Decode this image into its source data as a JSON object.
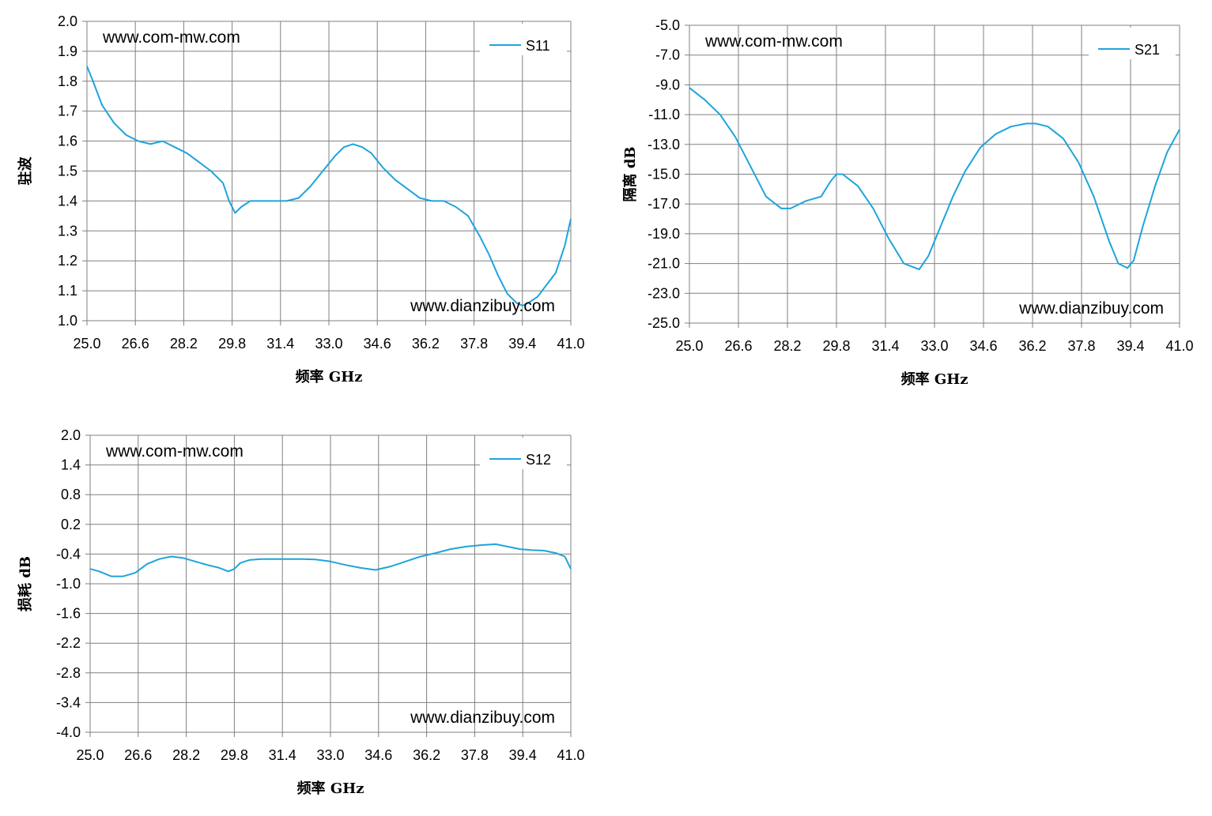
{
  "page": {
    "background": "#ffffff"
  },
  "style": {
    "series_color": "#1ea4dc",
    "grid_color": "#808080",
    "axis_color": "#808080"
  },
  "chart_data": [
    {
      "type": "line",
      "xlabel": "频率 GHz",
      "ylabel": "驻波",
      "xlim": [
        25.0,
        41.0
      ],
      "ylim": [
        1.0,
        2.0
      ],
      "x_ticks": [
        "25.0",
        "26.6",
        "28.2",
        "29.8",
        "31.4",
        "33.0",
        "34.6",
        "36.2",
        "37.8",
        "39.4",
        "41.0"
      ],
      "y_ticks": [
        "2.0",
        "1.9",
        "1.8",
        "1.7",
        "1.6",
        "1.5",
        "1.4",
        "1.3",
        "1.2",
        "1.1",
        "1.0"
      ],
      "grid": true,
      "legend": "top-right",
      "watermarks": [
        "www.com-mw.com",
        "www.dianzibuy.com"
      ],
      "series": [
        {
          "name": "S11",
          "x": [
            25.0,
            25.2,
            25.5,
            25.9,
            26.3,
            26.7,
            27.1,
            27.5,
            27.9,
            28.3,
            28.7,
            29.1,
            29.5,
            29.7,
            29.9,
            30.1,
            30.4,
            30.8,
            31.2,
            31.6,
            32.0,
            32.4,
            32.8,
            33.2,
            33.5,
            33.8,
            34.1,
            34.4,
            34.8,
            35.2,
            35.6,
            36.0,
            36.4,
            36.8,
            37.2,
            37.6,
            38.0,
            38.3,
            38.6,
            38.9,
            39.2,
            39.4,
            39.6,
            39.9,
            40.2,
            40.5,
            40.8,
            41.0
          ],
          "y": [
            1.85,
            1.8,
            1.72,
            1.66,
            1.62,
            1.6,
            1.59,
            1.6,
            1.58,
            1.56,
            1.53,
            1.5,
            1.46,
            1.4,
            1.36,
            1.38,
            1.4,
            1.4,
            1.4,
            1.4,
            1.41,
            1.45,
            1.5,
            1.55,
            1.58,
            1.59,
            1.58,
            1.56,
            1.51,
            1.47,
            1.44,
            1.41,
            1.4,
            1.4,
            1.38,
            1.35,
            1.28,
            1.22,
            1.15,
            1.09,
            1.06,
            1.05,
            1.06,
            1.08,
            1.12,
            1.16,
            1.25,
            1.34
          ]
        }
      ]
    },
    {
      "type": "line",
      "xlabel": "频率 GHz",
      "ylabel": "隔离 dB",
      "xlim": [
        25.0,
        41.0
      ],
      "ylim": [
        -25.0,
        -5.0
      ],
      "x_ticks": [
        "25.0",
        "26.6",
        "28.2",
        "29.8",
        "31.4",
        "33.0",
        "34.6",
        "36.2",
        "37.8",
        "39.4",
        "41.0"
      ],
      "y_ticks": [
        "-5.0",
        "-7.0",
        "-9.0",
        "-11.0",
        "-13.0",
        "-15.0",
        "-17.0",
        "-19.0",
        "-21.0",
        "-23.0",
        "-25.0"
      ],
      "grid": true,
      "legend": "top-right",
      "watermarks": [
        "www.com-mw.com",
        "www.dianzibuy.com"
      ],
      "series": [
        {
          "name": "S21",
          "x": [
            25.0,
            25.5,
            26.0,
            26.5,
            27.0,
            27.5,
            28.0,
            28.3,
            28.8,
            29.3,
            29.6,
            29.8,
            30.0,
            30.5,
            31.0,
            31.5,
            32.0,
            32.5,
            32.8,
            33.2,
            33.6,
            34.0,
            34.5,
            35.0,
            35.5,
            36.0,
            36.3,
            36.7,
            37.2,
            37.7,
            38.2,
            38.7,
            39.0,
            39.3,
            39.5,
            39.8,
            40.2,
            40.6,
            41.0
          ],
          "y": [
            -9.2,
            -10.0,
            -11.0,
            -12.5,
            -14.5,
            -16.5,
            -17.3,
            -17.3,
            -16.8,
            -16.5,
            -15.5,
            -15.0,
            -15.0,
            -15.8,
            -17.3,
            -19.3,
            -21.0,
            -21.4,
            -20.5,
            -18.5,
            -16.5,
            -14.8,
            -13.2,
            -12.3,
            -11.8,
            -11.6,
            -11.6,
            -11.8,
            -12.6,
            -14.2,
            -16.5,
            -19.5,
            -21.0,
            -21.3,
            -20.8,
            -18.5,
            -15.8,
            -13.5,
            -12.0
          ]
        }
      ]
    },
    {
      "type": "line",
      "xlabel": "频率 GHz",
      "ylabel": "损耗 dB",
      "xlim": [
        25.0,
        41.0
      ],
      "ylim": [
        -4.0,
        2.0
      ],
      "x_ticks": [
        "25.0",
        "26.6",
        "28.2",
        "29.8",
        "31.4",
        "33.0",
        "34.6",
        "36.2",
        "37.8",
        "39.4",
        "41.0"
      ],
      "y_ticks": [
        "2.0",
        "1.4",
        "0.8",
        "0.2",
        "-0.4",
        "-1.0",
        "-1.6",
        "-2.2",
        "-2.8",
        "-3.4",
        "-4.0"
      ],
      "grid": true,
      "legend": "top-right",
      "watermarks": [
        "www.com-mw.com",
        "www.dianzibuy.com"
      ],
      "series": [
        {
          "name": "S12",
          "x": [
            25.0,
            25.3,
            25.7,
            26.1,
            26.5,
            26.9,
            27.3,
            27.7,
            28.1,
            28.5,
            28.9,
            29.3,
            29.6,
            29.8,
            30.0,
            30.3,
            30.7,
            31.1,
            31.5,
            32.0,
            32.5,
            33.0,
            33.5,
            34.0,
            34.5,
            35.0,
            35.5,
            36.0,
            36.5,
            37.0,
            37.5,
            38.0,
            38.5,
            38.9,
            39.3,
            39.7,
            40.1,
            40.5,
            40.8,
            41.0
          ],
          "y": [
            -0.7,
            -0.75,
            -0.85,
            -0.85,
            -0.78,
            -0.6,
            -0.5,
            -0.45,
            -0.48,
            -0.55,
            -0.62,
            -0.68,
            -0.75,
            -0.7,
            -0.58,
            -0.52,
            -0.5,
            -0.5,
            -0.5,
            -0.5,
            -0.51,
            -0.55,
            -0.62,
            -0.68,
            -0.72,
            -0.65,
            -0.55,
            -0.45,
            -0.38,
            -0.3,
            -0.25,
            -0.22,
            -0.2,
            -0.25,
            -0.3,
            -0.32,
            -0.33,
            -0.38,
            -0.45,
            -0.7
          ]
        }
      ]
    }
  ]
}
